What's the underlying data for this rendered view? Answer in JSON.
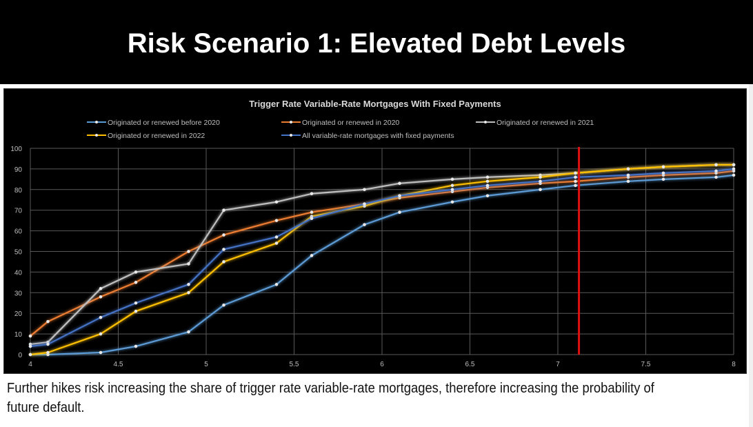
{
  "page": {
    "title": "Risk Scenario 1: Elevated Debt Levels",
    "caption": "Further hikes risk increasing the share of trigger rate variable-rate mortgages, therefore increasing the probability of future default."
  },
  "chart_data": {
    "type": "line",
    "title": "Trigger Rate Variable-Rate Mortgages With Fixed Payments",
    "xlabel": "",
    "ylabel": "",
    "xlim": [
      4,
      8
    ],
    "ylim": [
      0,
      100
    ],
    "x_ticks": [
      4,
      4.5,
      5,
      5.5,
      6,
      6.5,
      7,
      7.5,
      8
    ],
    "x_tick_labels": [
      "4",
      "4.5",
      "5",
      "5.5",
      "6",
      "6.5",
      "7",
      "7.5",
      "8"
    ],
    "y_ticks": [
      0,
      10,
      20,
      30,
      40,
      50,
      60,
      70,
      80,
      90,
      100
    ],
    "y_tick_labels": [
      "0",
      "10",
      "20",
      "30",
      "40",
      "50",
      "60",
      "70",
      "80",
      "90",
      "100"
    ],
    "grid": true,
    "legend_position": "top",
    "background": "#000000",
    "x": [
      4,
      4.1,
      4.4,
      4.6,
      4.9,
      5.1,
      5.4,
      5.6,
      5.9,
      6.1,
      6.4,
      6.6,
      6.9,
      7.1,
      7.4,
      7.6,
      7.9,
      8
    ],
    "series": [
      {
        "name": "Originated or renewed before 2020",
        "color": "#5b9bd5",
        "values": [
          0,
          0,
          1,
          4,
          11,
          24,
          34,
          48,
          63,
          69,
          74,
          77,
          80,
          82,
          84,
          85,
          86,
          87
        ]
      },
      {
        "name": "Originated or renewed in 2020",
        "color": "#ed7d31",
        "values": [
          9,
          16,
          28,
          35,
          50,
          58,
          65,
          69,
          73,
          76,
          79,
          81,
          83,
          84,
          86,
          87,
          88,
          89
        ]
      },
      {
        "name": "Originated or renewed in 2021",
        "color": "#bfbfbf",
        "values": [
          5,
          6,
          32,
          40,
          44,
          70,
          74,
          78,
          80,
          83,
          85,
          86,
          87,
          88,
          90,
          91,
          92,
          92
        ]
      },
      {
        "name": "Originated or renewed in 2022",
        "color": "#ffc000",
        "values": [
          0,
          1,
          10,
          21,
          30,
          45,
          54,
          67,
          72,
          77,
          82,
          84,
          86,
          88,
          90,
          91,
          92,
          92
        ]
      },
      {
        "name": "All variable-rate mortgages with fixed payments",
        "color": "#4472c4",
        "values": [
          4,
          5,
          18,
          25,
          34,
          51,
          57,
          66,
          73,
          77,
          80,
          82,
          84,
          86,
          87,
          88,
          89,
          90
        ]
      }
    ],
    "reference_line": {
      "x": 7.12,
      "color": "#e01010"
    }
  }
}
